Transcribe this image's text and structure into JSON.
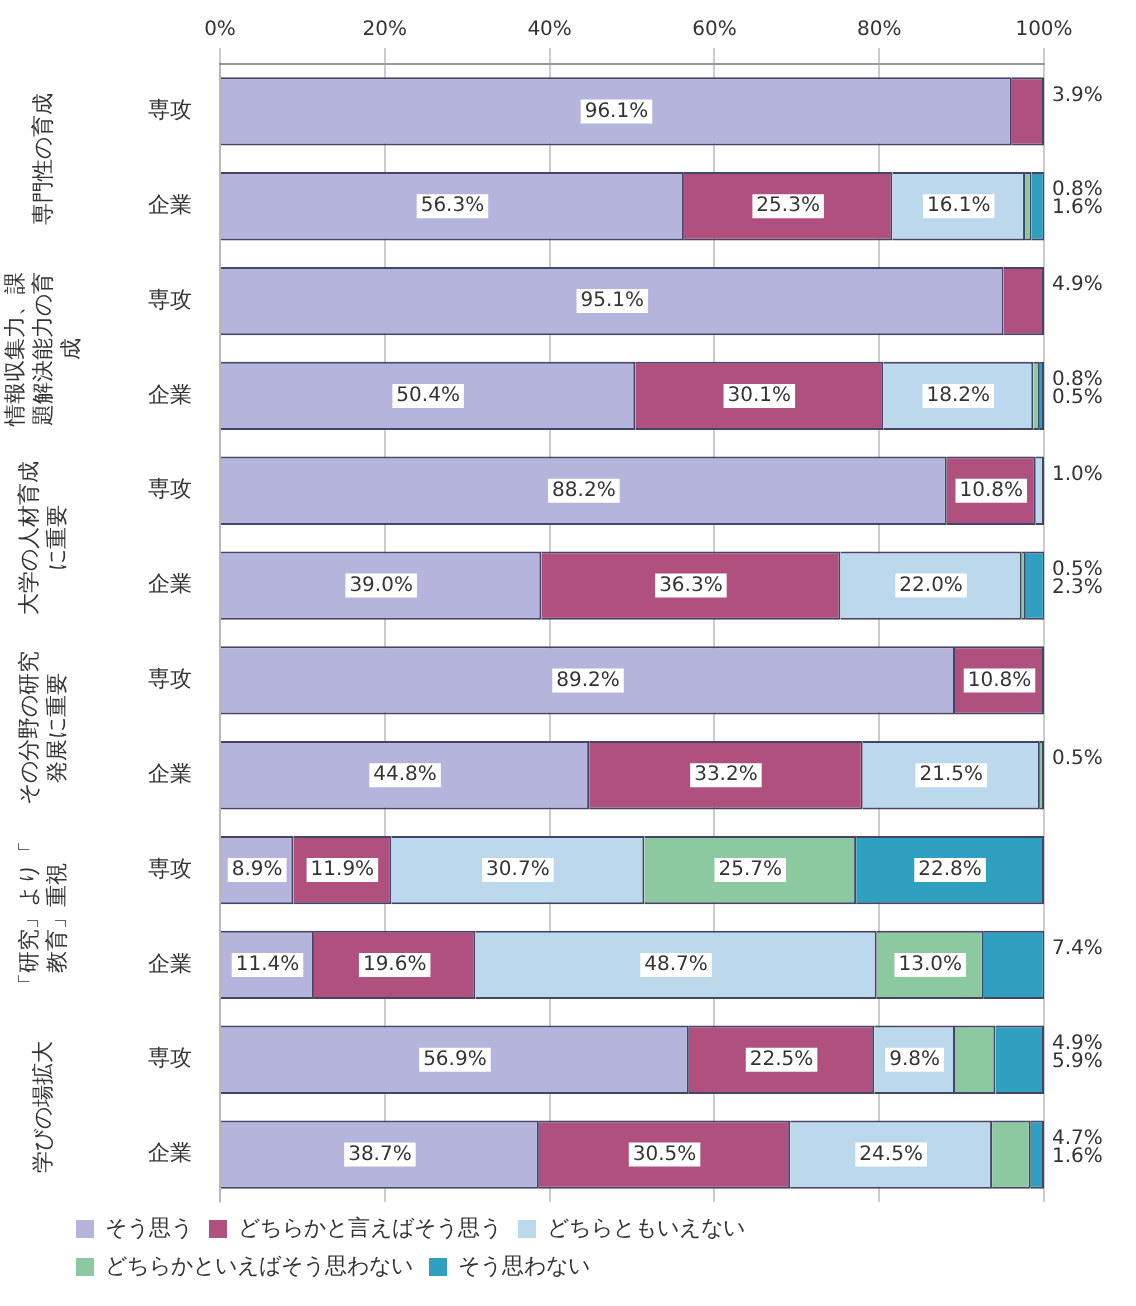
{
  "chart_data": {
    "type": "bar",
    "orientation": "horizontal",
    "stacked": true,
    "categories": [
      "専攻",
      "企業",
      "専攻",
      "企業",
      "専攻",
      "企業",
      "専攻",
      "企業",
      "専攻",
      "企業",
      "専攻",
      "企業"
    ],
    "annotations": [
      "専門性の育成",
      "情報収集力、課題解決能力の育成",
      "大学の人材育成に重要",
      "その分野の研究発展に重要",
      "「研究」より「教育」重視",
      "学びの場拡大"
    ],
    "series": [
      {
        "name": "そう思う",
        "color": "#b4b4dc",
        "values": [
          96.1,
          56.3,
          95.1,
          50.4,
          88.2,
          39.0,
          89.2,
          44.8,
          8.9,
          11.4,
          56.9,
          38.7
        ],
        "value_labels": [
          "96.1%",
          "56.3%",
          "95.1%",
          "50.4%",
          "88.2%",
          "39.0%",
          "89.2%",
          "44.8%",
          "8.9%",
          "11.4%",
          "56.9%",
          "38.7%"
        ]
      },
      {
        "name": "どちらかと言えばそう思う",
        "color": "#b0507e",
        "values": [
          3.9,
          25.3,
          4.9,
          30.1,
          10.8,
          36.3,
          10.8,
          33.2,
          11.9,
          19.6,
          22.5,
          30.5
        ],
        "value_labels": [
          "3.9%",
          "25.3%",
          "4.9%",
          "30.1%",
          "10.8%",
          "36.3%",
          "10.8%",
          "33.2%",
          "11.9%",
          "19.6%",
          "22.5%",
          "30.5%"
        ]
      },
      {
        "name": "どちらともいえない",
        "color": "#bcd8ec",
        "values": [
          null,
          16.1,
          null,
          18.2,
          1.0,
          22.0,
          null,
          21.5,
          30.7,
          48.7,
          9.8,
          24.5
        ],
        "value_labels": [
          null,
          "16.1%",
          null,
          "18.2%",
          "1.0%",
          "22.0%",
          null,
          "21.5%",
          "30.7%",
          "48.7%",
          "9.8%",
          "24.5%"
        ]
      },
      {
        "name": "どちらかといえばそう思わない",
        "color": "#8cc8a0",
        "values": [
          null,
          0.8,
          null,
          0.8,
          null,
          0.5,
          null,
          0.5,
          25.7,
          13.0,
          4.9,
          4.7
        ],
        "value_labels": [
          null,
          "0.8%",
          null,
          "0.8%",
          null,
          "0.5%",
          null,
          "0.5%",
          "25.7%",
          "13.0%",
          "4.9%",
          "4.7%"
        ]
      },
      {
        "name": "そう思わない",
        "color": "#30a0c0",
        "values": [
          null,
          1.6,
          null,
          0.5,
          null,
          2.3,
          null,
          null,
          22.8,
          7.4,
          5.9,
          1.6
        ],
        "value_labels": [
          null,
          "1.6%",
          null,
          "0.5%",
          null,
          "2.3%",
          null,
          null,
          "22.8%",
          "7.4%",
          "5.9%",
          "1.6%"
        ]
      }
    ],
    "xlim": [
      0,
      100
    ],
    "xticks": [
      {
        "value": 0,
        "label": "0%"
      },
      {
        "value": 20,
        "label": "20%"
      },
      {
        "value": 40,
        "label": "40%"
      },
      {
        "value": 60,
        "label": "60%"
      },
      {
        "value": 80,
        "label": "80%"
      },
      {
        "value": 100,
        "label": "100%"
      }
    ],
    "grid": "x",
    "legend": "bottom"
  }
}
